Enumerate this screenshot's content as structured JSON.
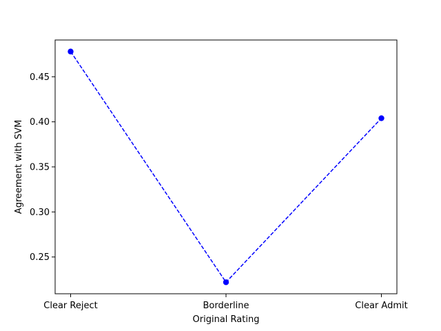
{
  "chart_data": {
    "type": "line",
    "title": "",
    "xlabel": "Original Rating",
    "ylabel": "Agreement with SVM",
    "categories": [
      "Clear Reject",
      "Borderline",
      "Clear Admit"
    ],
    "series": [
      {
        "values": [
          0.478,
          0.222,
          0.404
        ],
        "color": "#0000ff",
        "linestyle": "dashed",
        "marker": "circle"
      }
    ],
    "yticks": [
      0.25,
      0.3,
      0.35,
      0.4,
      0.45
    ],
    "ytick_labels": [
      "0.25",
      "0.30",
      "0.35",
      "0.40",
      "0.45"
    ],
    "ylim": [
      0.2092,
      0.4908
    ],
    "grid": false,
    "legend": "none"
  }
}
